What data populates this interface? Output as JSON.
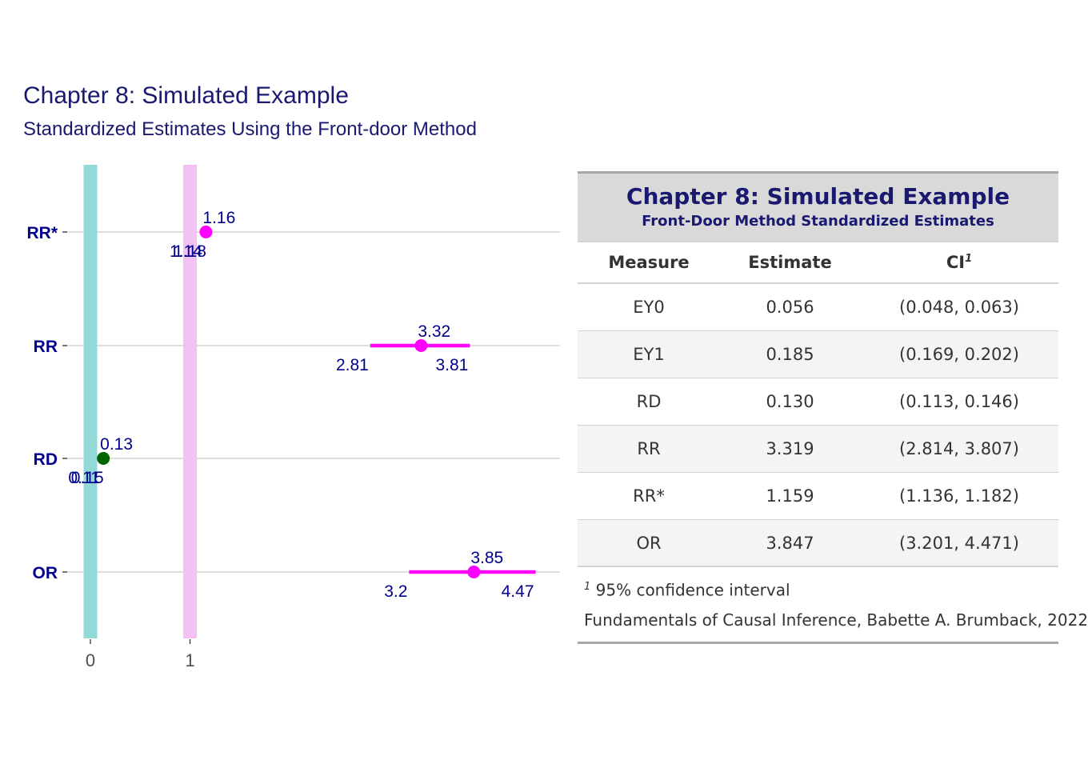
{
  "chart_data": {
    "type": "forest",
    "title": "Chapter 8: Simulated Example",
    "subtitle": "Standardized Estimates Using the Front-door Method",
    "categories": [
      "RR*",
      "RR",
      "RD",
      "OR"
    ],
    "x_ticks": [
      0,
      1
    ],
    "reference_lines": [
      {
        "value": 0,
        "color": "#93d9d7"
      },
      {
        "value": 1,
        "color": "#f3c2f3"
      }
    ],
    "points": [
      {
        "category": "RR*",
        "estimate": 1.16,
        "lower": 1.14,
        "upper": 1.18,
        "color": "#ff00ff",
        "label_est": "1.16",
        "label_lo": "1.14",
        "label_hi": "1.18"
      },
      {
        "category": "RR",
        "estimate": 3.32,
        "lower": 2.81,
        "upper": 3.81,
        "color": "#ff00ff",
        "label_est": "3.32",
        "label_lo": "2.81",
        "label_hi": "3.81"
      },
      {
        "category": "RD",
        "estimate": 0.13,
        "lower": 0.11,
        "upper": 0.15,
        "color": "#006400",
        "label_est": "0.13",
        "label_lo": "0.11",
        "label_hi": "0.15"
      },
      {
        "category": "OR",
        "estimate": 3.85,
        "lower": 3.2,
        "upper": 4.47,
        "color": "#ff00ff",
        "label_est": "3.85",
        "label_lo": "3.2",
        "label_hi": "4.47"
      }
    ]
  },
  "table": {
    "title": "Chapter 8: Simulated Example",
    "subtitle": "Front-Door Method Standardized Estimates",
    "columns": {
      "measure": "Measure",
      "estimate": "Estimate",
      "ci": "CI",
      "ci_mark": "1"
    },
    "rows": [
      {
        "measure": "EY0",
        "estimate": "0.056",
        "ci": "(0.048, 0.063)"
      },
      {
        "measure": "EY1",
        "estimate": "0.185",
        "ci": "(0.169, 0.202)"
      },
      {
        "measure": "RD",
        "estimate": "0.130",
        "ci": "(0.113, 0.146)"
      },
      {
        "measure": "RR",
        "estimate": "3.319",
        "ci": "(2.814, 3.807)"
      },
      {
        "measure": "RR*",
        "estimate": "1.159",
        "ci": "(1.136, 1.182)"
      },
      {
        "measure": "OR",
        "estimate": "3.847",
        "ci": "(3.201, 4.471)"
      }
    ],
    "footnote_mark": "1",
    "footnote": "95% confidence interval",
    "source": "Fundamentals of Causal Inference, Babette A. Brumback, 2022"
  }
}
